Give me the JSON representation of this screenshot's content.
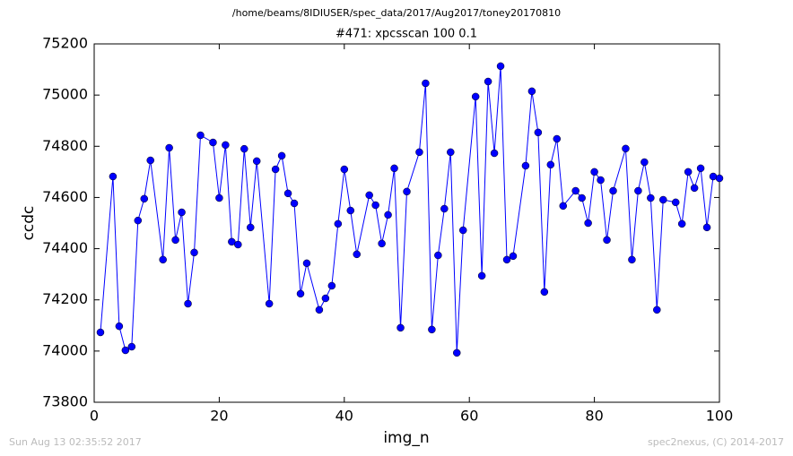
{
  "chart_data": {
    "type": "line",
    "title": "/home/beams/8IDIUSER/spec_data/2017/Aug2017/toney20170810",
    "subtitle": "#471: xpcsscan 100 0.1",
    "x_label": "img_n",
    "y_label": "ccdc",
    "footer_left": "Sun Aug 13 02:35:52 2017",
    "footer_right": "spec2nexus, (C) 2014-2017",
    "color": "#0000ff",
    "x": [
      1,
      3,
      4,
      5,
      6,
      7,
      8,
      9,
      11,
      12,
      13,
      14,
      15,
      16,
      17,
      19,
      20,
      21,
      22,
      23,
      24,
      25,
      26,
      28,
      29,
      30,
      31,
      32,
      33,
      34,
      36,
      37,
      38,
      39,
      40,
      41,
      42,
      44,
      45,
      46,
      47,
      48,
      49,
      50,
      52,
      53,
      54,
      55,
      56,
      57,
      58,
      59,
      61,
      62,
      63,
      64,
      65,
      66,
      67,
      69,
      70,
      71,
      72,
      73,
      74,
      75,
      77,
      78,
      79,
      80,
      81,
      82,
      83,
      85,
      86,
      87,
      88,
      89,
      90,
      91,
      93,
      94,
      95,
      96,
      97,
      98,
      99,
      100
    ],
    "values": [
      74073,
      74682,
      74097,
      74003,
      74017,
      74510,
      74595,
      74745,
      74357,
      74794,
      74434,
      74542,
      74185,
      74385,
      74843,
      74815,
      74598,
      74805,
      74427,
      74416,
      74790,
      74483,
      74742,
      74185,
      74710,
      74763,
      74616,
      74577,
      74224,
      74343,
      74161,
      74206,
      74255,
      74497,
      74710,
      74549,
      74378,
      74609,
      74570,
      74420,
      74532,
      74714,
      74091,
      74623,
      74777,
      75046,
      74084,
      74374,
      74556,
      74777,
      73993,
      74472,
      74994,
      74294,
      75053,
      74773,
      75113,
      74357,
      74371,
      74724,
      75015,
      74854,
      74231,
      74728,
      74829,
      74567,
      74626,
      74598,
      74500,
      74700,
      74668,
      74434,
      74626,
      74791,
      74357,
      74626,
      74738,
      74598,
      74161,
      74591,
      74581,
      74497,
      74700,
      74637,
      74714,
      74483,
      74682,
      74675
    ],
    "xlim": [
      0,
      100
    ],
    "xticks": [
      0,
      20,
      40,
      60,
      80,
      100
    ],
    "ylim": [
      73800,
      75200
    ],
    "yticks": [
      73800,
      74000,
      74200,
      74400,
      74600,
      74800,
      75000,
      75200
    ]
  }
}
